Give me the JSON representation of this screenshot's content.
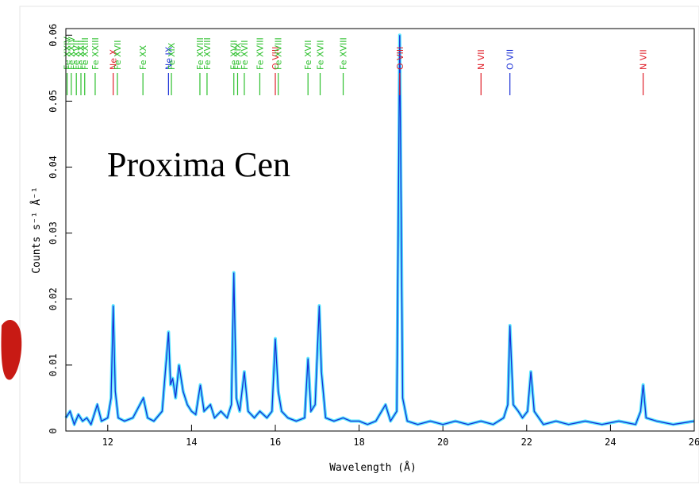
{
  "chart_data": {
    "type": "line",
    "title": "Proxima Cen",
    "x_label": "Wavelength (Å)",
    "y_label": "Counts s⁻¹ Å⁻¹",
    "xlim": [
      11,
      26
    ],
    "ylim": [
      0,
      0.061
    ],
    "xticks": [
      12,
      14,
      16,
      18,
      20,
      22,
      24,
      26
    ],
    "yticks": [
      0,
      0.01,
      0.02,
      0.03,
      0.04,
      0.05,
      0.06
    ],
    "series": [
      {
        "color": "#1a2fd6",
        "x": [
          11.0,
          11.1,
          11.2,
          11.3,
          11.4,
          11.5,
          11.6,
          11.75,
          11.85,
          12.0,
          12.08,
          12.13,
          12.18,
          12.25,
          12.4,
          12.6,
          12.85,
          12.95,
          13.1,
          13.3,
          13.45,
          13.5,
          13.55,
          13.62,
          13.7,
          13.8,
          13.9,
          14.0,
          14.1,
          14.21,
          14.3,
          14.45,
          14.55,
          14.7,
          14.85,
          14.95,
          15.01,
          15.07,
          15.15,
          15.26,
          15.35,
          15.5,
          15.63,
          15.8,
          15.92,
          16.0,
          16.07,
          16.15,
          16.3,
          16.5,
          16.7,
          16.78,
          16.85,
          16.95,
          17.05,
          17.1,
          17.2,
          17.4,
          17.62,
          17.8,
          18.0,
          18.2,
          18.4,
          18.63,
          18.75,
          18.9,
          18.97,
          19.04,
          19.15,
          19.4,
          19.7,
          20.0,
          20.3,
          20.6,
          20.91,
          21.2,
          21.45,
          21.55,
          21.6,
          21.68,
          21.8,
          21.9,
          22.02,
          22.1,
          22.18,
          22.4,
          22.7,
          23.0,
          23.4,
          23.8,
          24.2,
          24.6,
          24.72,
          24.78,
          24.85,
          25.1,
          25.5,
          26.0
        ],
        "values": [
          0.002,
          0.003,
          0.001,
          0.0025,
          0.0015,
          0.002,
          0.001,
          0.004,
          0.0015,
          0.002,
          0.005,
          0.019,
          0.006,
          0.002,
          0.0015,
          0.002,
          0.005,
          0.002,
          0.0015,
          0.003,
          0.015,
          0.007,
          0.008,
          0.005,
          0.01,
          0.006,
          0.004,
          0.003,
          0.0025,
          0.007,
          0.003,
          0.004,
          0.002,
          0.003,
          0.002,
          0.004,
          0.024,
          0.005,
          0.003,
          0.009,
          0.003,
          0.002,
          0.003,
          0.002,
          0.003,
          0.014,
          0.006,
          0.003,
          0.002,
          0.0015,
          0.002,
          0.011,
          0.003,
          0.004,
          0.019,
          0.009,
          0.002,
          0.0015,
          0.002,
          0.0015,
          0.0015,
          0.001,
          0.0015,
          0.004,
          0.0015,
          0.003,
          0.06,
          0.005,
          0.0015,
          0.001,
          0.0015,
          0.001,
          0.0015,
          0.001,
          0.0015,
          0.001,
          0.002,
          0.004,
          0.016,
          0.004,
          0.003,
          0.002,
          0.003,
          0.009,
          0.003,
          0.001,
          0.0015,
          0.001,
          0.0015,
          0.001,
          0.0015,
          0.001,
          0.003,
          0.007,
          0.002,
          0.0015,
          0.001,
          0.0015
        ]
      }
    ],
    "line_ids": [
      {
        "x": 11.03,
        "label": "Fe XXIV",
        "color": "#2ec02e"
      },
      {
        "x": 11.13,
        "label": "Fe XXIV",
        "color": "#2ec02e"
      },
      {
        "x": 11.25,
        "label": "Fe XVII",
        "color": "#2ec02e"
      },
      {
        "x": 11.36,
        "label": "Fe XXII",
        "color": "#2ec02e"
      },
      {
        "x": 11.45,
        "label": "Fe XXIII",
        "color": "#2ec02e"
      },
      {
        "x": 11.7,
        "label": "Fe XXIII",
        "color": "#2ec02e"
      },
      {
        "x": 12.13,
        "label": "Ne X",
        "color": "#e0202a"
      },
      {
        "x": 12.23,
        "label": "Fe XVII",
        "color": "#2ec02e"
      },
      {
        "x": 12.84,
        "label": "Fe XX",
        "color": "#2ec02e"
      },
      {
        "x": 13.45,
        "label": "Ne IX",
        "color": "#1a2fd6"
      },
      {
        "x": 13.52,
        "label": "Fe XIX",
        "color": "#2ec02e"
      },
      {
        "x": 14.2,
        "label": "Fe XVIII",
        "color": "#2ec02e"
      },
      {
        "x": 14.37,
        "label": "Fe XVIII",
        "color": "#2ec02e"
      },
      {
        "x": 15.01,
        "label": "Fe XVII",
        "color": "#2ec02e"
      },
      {
        "x": 15.1,
        "label": "Fe XIX",
        "color": "#2ec02e"
      },
      {
        "x": 15.26,
        "label": "Fe XVII",
        "color": "#2ec02e"
      },
      {
        "x": 15.63,
        "label": "Fe XVIII",
        "color": "#2ec02e"
      },
      {
        "x": 16.0,
        "label": "O VIII",
        "color": "#e0202a"
      },
      {
        "x": 16.07,
        "label": "Fe XVIII",
        "color": "#2ec02e"
      },
      {
        "x": 16.78,
        "label": "Fe XVII",
        "color": "#2ec02e"
      },
      {
        "x": 17.07,
        "label": "Fe XVII",
        "color": "#2ec02e"
      },
      {
        "x": 17.62,
        "label": "Fe XVIII",
        "color": "#2ec02e"
      },
      {
        "x": 18.97,
        "label": "O VIII",
        "color": "#e0202a"
      },
      {
        "x": 20.91,
        "label": "N VII",
        "color": "#e0202a"
      },
      {
        "x": 21.6,
        "label": "O VII",
        "color": "#1a2fd6"
      },
      {
        "x": 24.78,
        "label": "N VII",
        "color": "#e0202a"
      }
    ]
  }
}
